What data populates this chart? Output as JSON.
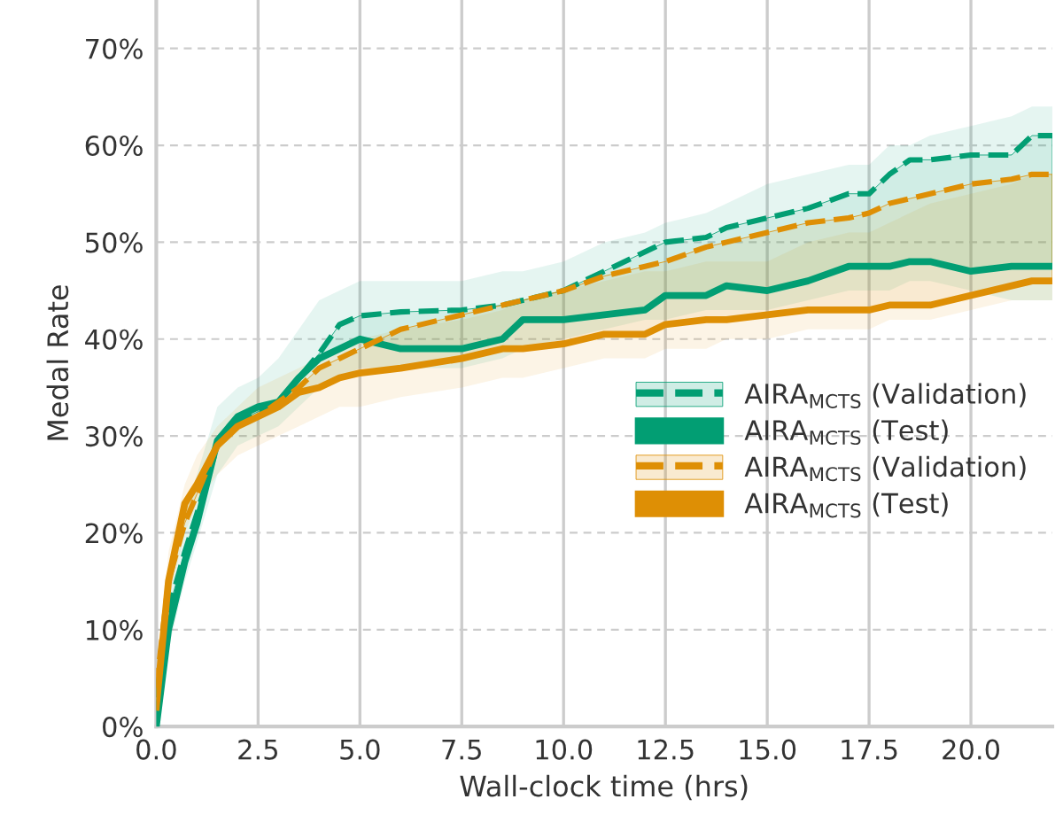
{
  "chart_data": {
    "type": "line",
    "xlabel": "Wall-clock time (hrs)",
    "ylabel": "Medal Rate",
    "x": [
      0,
      0.3,
      0.7,
      1,
      1.5,
      2,
      2.5,
      3,
      3.5,
      4,
      4.5,
      5,
      6,
      7.5,
      8.5,
      9,
      10,
      11,
      12,
      12.5,
      13.5,
      14,
      15,
      16,
      17,
      17.5,
      18,
      18.5,
      19,
      20,
      21,
      21.5,
      22
    ],
    "series": [
      {
        "name": "AIRA$_{MCTS}$ (Validation)",
        "color": "#029e73",
        "line_style": "dashed",
        "values": [
          3,
          12,
          18,
          22,
          29,
          31.5,
          32.5,
          33.5,
          36,
          38.5,
          41.5,
          42.4,
          42.8,
          43,
          43.5,
          44,
          45,
          47,
          49,
          50,
          50.5,
          51.5,
          52.5,
          53.5,
          55,
          55,
          57,
          58.5,
          58.5,
          59,
          59,
          61,
          61
        ],
        "lower": [
          0,
          10,
          17,
          21,
          29.5,
          32,
          33,
          33.5,
          36,
          38,
          39,
          40,
          39,
          39,
          40,
          42,
          42,
          42.5,
          43,
          44.5,
          44.5,
          45.5,
          45,
          46,
          47.5,
          47.5,
          47.5,
          48,
          48,
          47,
          47.5,
          47.5,
          47.5
        ],
        "upper": [
          3,
          12,
          18,
          22,
          29,
          31.5,
          32.5,
          33.5,
          36,
          38.5,
          41.5,
          42.4,
          42.8,
          43,
          43.5,
          44,
          45,
          47,
          49,
          50,
          50.5,
          51.5,
          52.5,
          53.5,
          55,
          55,
          57,
          58.5,
          58.5,
          59,
          59,
          61,
          61
        ]
      },
      {
        "name": "AIRA$_{MCTS}$ (Test)",
        "color": "#029e73",
        "line_style": "solid",
        "values": [
          0,
          10,
          17,
          21,
          29.5,
          32,
          33,
          33.5,
          36,
          38,
          39,
          40,
          39,
          39,
          40,
          42,
          42,
          42.5,
          43,
          44.5,
          44.5,
          45.5,
          45,
          46,
          47.5,
          47.5,
          47.5,
          48,
          48,
          47,
          47.5,
          47.5,
          47.5
        ],
        "lower": [
          0,
          8,
          15,
          19,
          26,
          29,
          30,
          31,
          33,
          35,
          36,
          37,
          37,
          37,
          38,
          39,
          40,
          41,
          42,
          42,
          43,
          43,
          43,
          44,
          45,
          45,
          45,
          46,
          46,
          45,
          44,
          44,
          44
        ],
        "upper": [
          4,
          15,
          22,
          26,
          33,
          35,
          36,
          38,
          41,
          44,
          45,
          46,
          46,
          46,
          47,
          47,
          48,
          50,
          51,
          52,
          53,
          54,
          56,
          57,
          58,
          58,
          60,
          60,
          61,
          62,
          63,
          64,
          64
        ]
      },
      {
        "name": "AIRA$_{MCTS}$ (Validation)",
        "color": "#de8f05",
        "line_style": "dashed",
        "values": [
          4,
          15,
          21,
          24,
          29,
          31,
          32,
          33.5,
          35,
          37,
          38,
          39,
          41,
          42.5,
          43.5,
          44,
          45,
          46.5,
          47.5,
          48,
          49.5,
          50,
          51,
          52,
          52.5,
          53,
          54,
          54.5,
          55,
          56,
          56.5,
          57,
          57
        ],
        "lower": [
          2,
          15,
          23,
          25,
          29,
          31,
          32,
          33,
          34.5,
          35,
          36,
          36.5,
          37,
          38,
          39,
          39,
          39.5,
          40.5,
          40.5,
          41.5,
          42,
          42,
          42.5,
          43,
          43,
          43,
          43.5,
          43.5,
          43.5,
          44.5,
          45.5,
          46,
          46
        ],
        "upper": [
          4,
          15,
          21,
          24,
          29,
          31,
          32,
          33.5,
          35,
          37,
          38,
          39,
          41,
          42.5,
          43.5,
          44,
          45,
          46.5,
          47.5,
          48,
          49.5,
          50,
          51,
          52,
          52.5,
          53,
          54,
          54.5,
          55,
          56,
          56.5,
          57,
          57
        ]
      },
      {
        "name": "AIRA$_{MCTS}$ (Test)",
        "color": "#de8f05",
        "line_style": "solid",
        "values": [
          2,
          15,
          23,
          25,
          29,
          31,
          32,
          33,
          34.5,
          35,
          36,
          36.5,
          37,
          38,
          39,
          39,
          39.5,
          40.5,
          40.5,
          41.5,
          42,
          42,
          42.5,
          43,
          43,
          43,
          43.5,
          43.5,
          43.5,
          44.5,
          45.5,
          46,
          46
        ],
        "lower": [
          1,
          13,
          20,
          23,
          26,
          28,
          29,
          30,
          31,
          32,
          33,
          33,
          34,
          35,
          36,
          36,
          37,
          38,
          38,
          39,
          39,
          40,
          40,
          41,
          41,
          41,
          42,
          42,
          42,
          43,
          44,
          44,
          44
        ],
        "upper": [
          5,
          18,
          25,
          28,
          31,
          33,
          35,
          36,
          37,
          38,
          39,
          40,
          41,
          42,
          43,
          44,
          45,
          46,
          47,
          47,
          48,
          48,
          48,
          50,
          51,
          51,
          52,
          53,
          54,
          55,
          56,
          57,
          57
        ]
      }
    ],
    "xlim": [
      0,
      22
    ],
    "ylim": [
      0,
      75
    ],
    "xticks": [
      {
        "value": 0,
        "label": "0.0"
      },
      {
        "value": 2.5,
        "label": "2.5"
      },
      {
        "value": 5,
        "label": "5.0"
      },
      {
        "value": 7.5,
        "label": "7.5"
      },
      {
        "value": 10,
        "label": "10.0"
      },
      {
        "value": 12.5,
        "label": "12.5"
      },
      {
        "value": 15,
        "label": "15.0"
      },
      {
        "value": 17.5,
        "label": "17.5"
      },
      {
        "value": 20,
        "label": "20.0"
      }
    ],
    "yticks": [
      {
        "value": 0,
        "label": "0%"
      },
      {
        "value": 10,
        "label": "10%"
      },
      {
        "value": 20,
        "label": "20%"
      },
      {
        "value": 30,
        "label": "30%"
      },
      {
        "value": 40,
        "label": "40%"
      },
      {
        "value": 50,
        "label": "50%"
      },
      {
        "value": 60,
        "label": "60%"
      },
      {
        "value": 70,
        "label": "70%"
      }
    ],
    "grid": true,
    "legend": "center right"
  }
}
